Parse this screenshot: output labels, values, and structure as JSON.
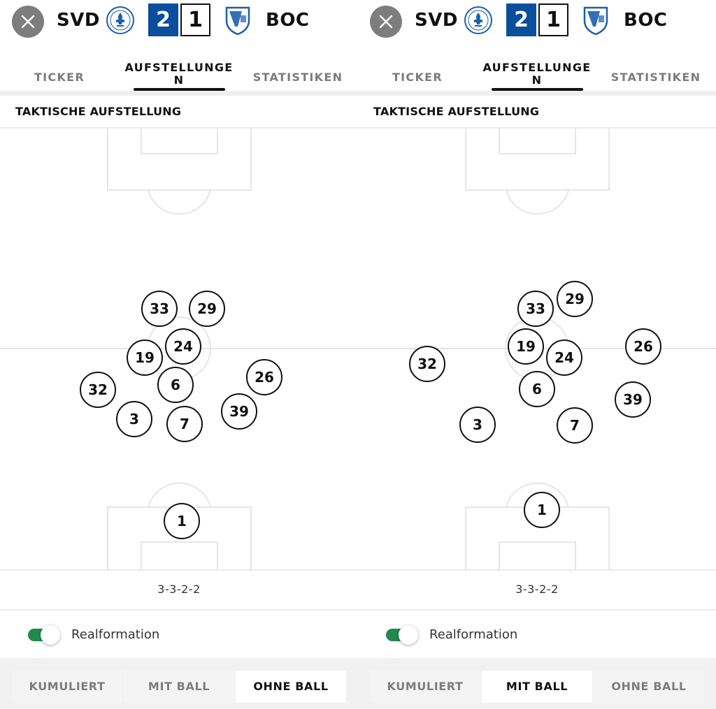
{
  "header": {
    "home_code": "SVD",
    "away_code": "BOC",
    "home_score": "2",
    "away_score": "1",
    "home_color": "#0a4e9c"
  },
  "tabs": [
    {
      "label": "TICKER"
    },
    {
      "label_line1": "AUFSTELLUNGE",
      "label_line2": "N"
    },
    {
      "label": "STATISTIKEN"
    }
  ],
  "section_title": "TAKTISCHE AUFSTELLUNG",
  "formation": "3-3-2-2",
  "toggle": {
    "label": "Realformation",
    "on": true,
    "color": "#1f8a4c"
  },
  "segments": [
    "KUMULIERT",
    "MIT BALL",
    "OHNE BALL"
  ],
  "views": [
    {
      "active_segment": "OHNE BALL",
      "players": [
        {
          "number": "33"
        },
        {
          "number": "29"
        },
        {
          "number": "24"
        },
        {
          "number": "19"
        },
        {
          "number": "6"
        },
        {
          "number": "26"
        },
        {
          "number": "32"
        },
        {
          "number": "39"
        },
        {
          "number": "3"
        },
        {
          "number": "7"
        },
        {
          "number": "1"
        }
      ]
    },
    {
      "active_segment": "MIT BALL",
      "players": [
        {
          "number": "29"
        },
        {
          "number": "33"
        },
        {
          "number": "26"
        },
        {
          "number": "19"
        },
        {
          "number": "32"
        },
        {
          "number": "24"
        },
        {
          "number": "6"
        },
        {
          "number": "39"
        },
        {
          "number": "3"
        },
        {
          "number": "7"
        },
        {
          "number": "1"
        }
      ]
    }
  ]
}
